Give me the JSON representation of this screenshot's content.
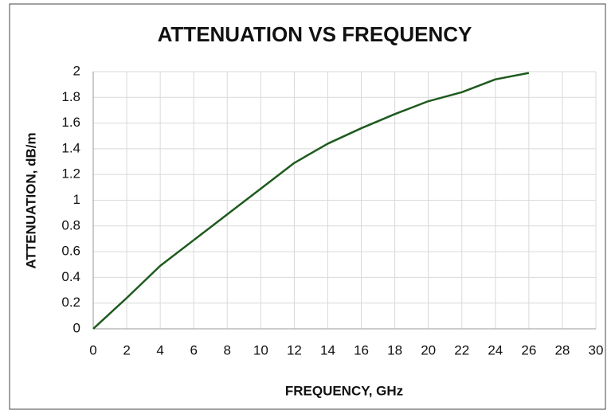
{
  "chart_data": {
    "type": "line",
    "title": "ATTENUATION VS FREQUENCY",
    "x_label": "FREQUENCY, GHz",
    "y_label": "ATTENUATION, dB/m",
    "x": [
      0,
      2,
      4,
      6,
      8,
      10,
      12,
      14,
      16,
      18,
      20,
      22,
      24,
      26
    ],
    "series": [
      {
        "name": "Attenuation",
        "color": "#1e5a1e",
        "values": [
          0,
          0.24,
          0.49,
          0.69,
          0.89,
          1.09,
          1.29,
          1.44,
          1.56,
          1.67,
          1.77,
          1.84,
          1.94,
          1.99
        ]
      }
    ],
    "xlim": [
      0,
      30
    ],
    "xticks": [
      0,
      2,
      4,
      6,
      8,
      10,
      12,
      14,
      16,
      18,
      20,
      22,
      24,
      26,
      28,
      30
    ],
    "ylim": [
      0,
      2
    ],
    "yticks": [
      0,
      0.2,
      0.4,
      0.6,
      0.8,
      1,
      1.2,
      1.4,
      1.6,
      1.8,
      2
    ],
    "grid": true
  }
}
